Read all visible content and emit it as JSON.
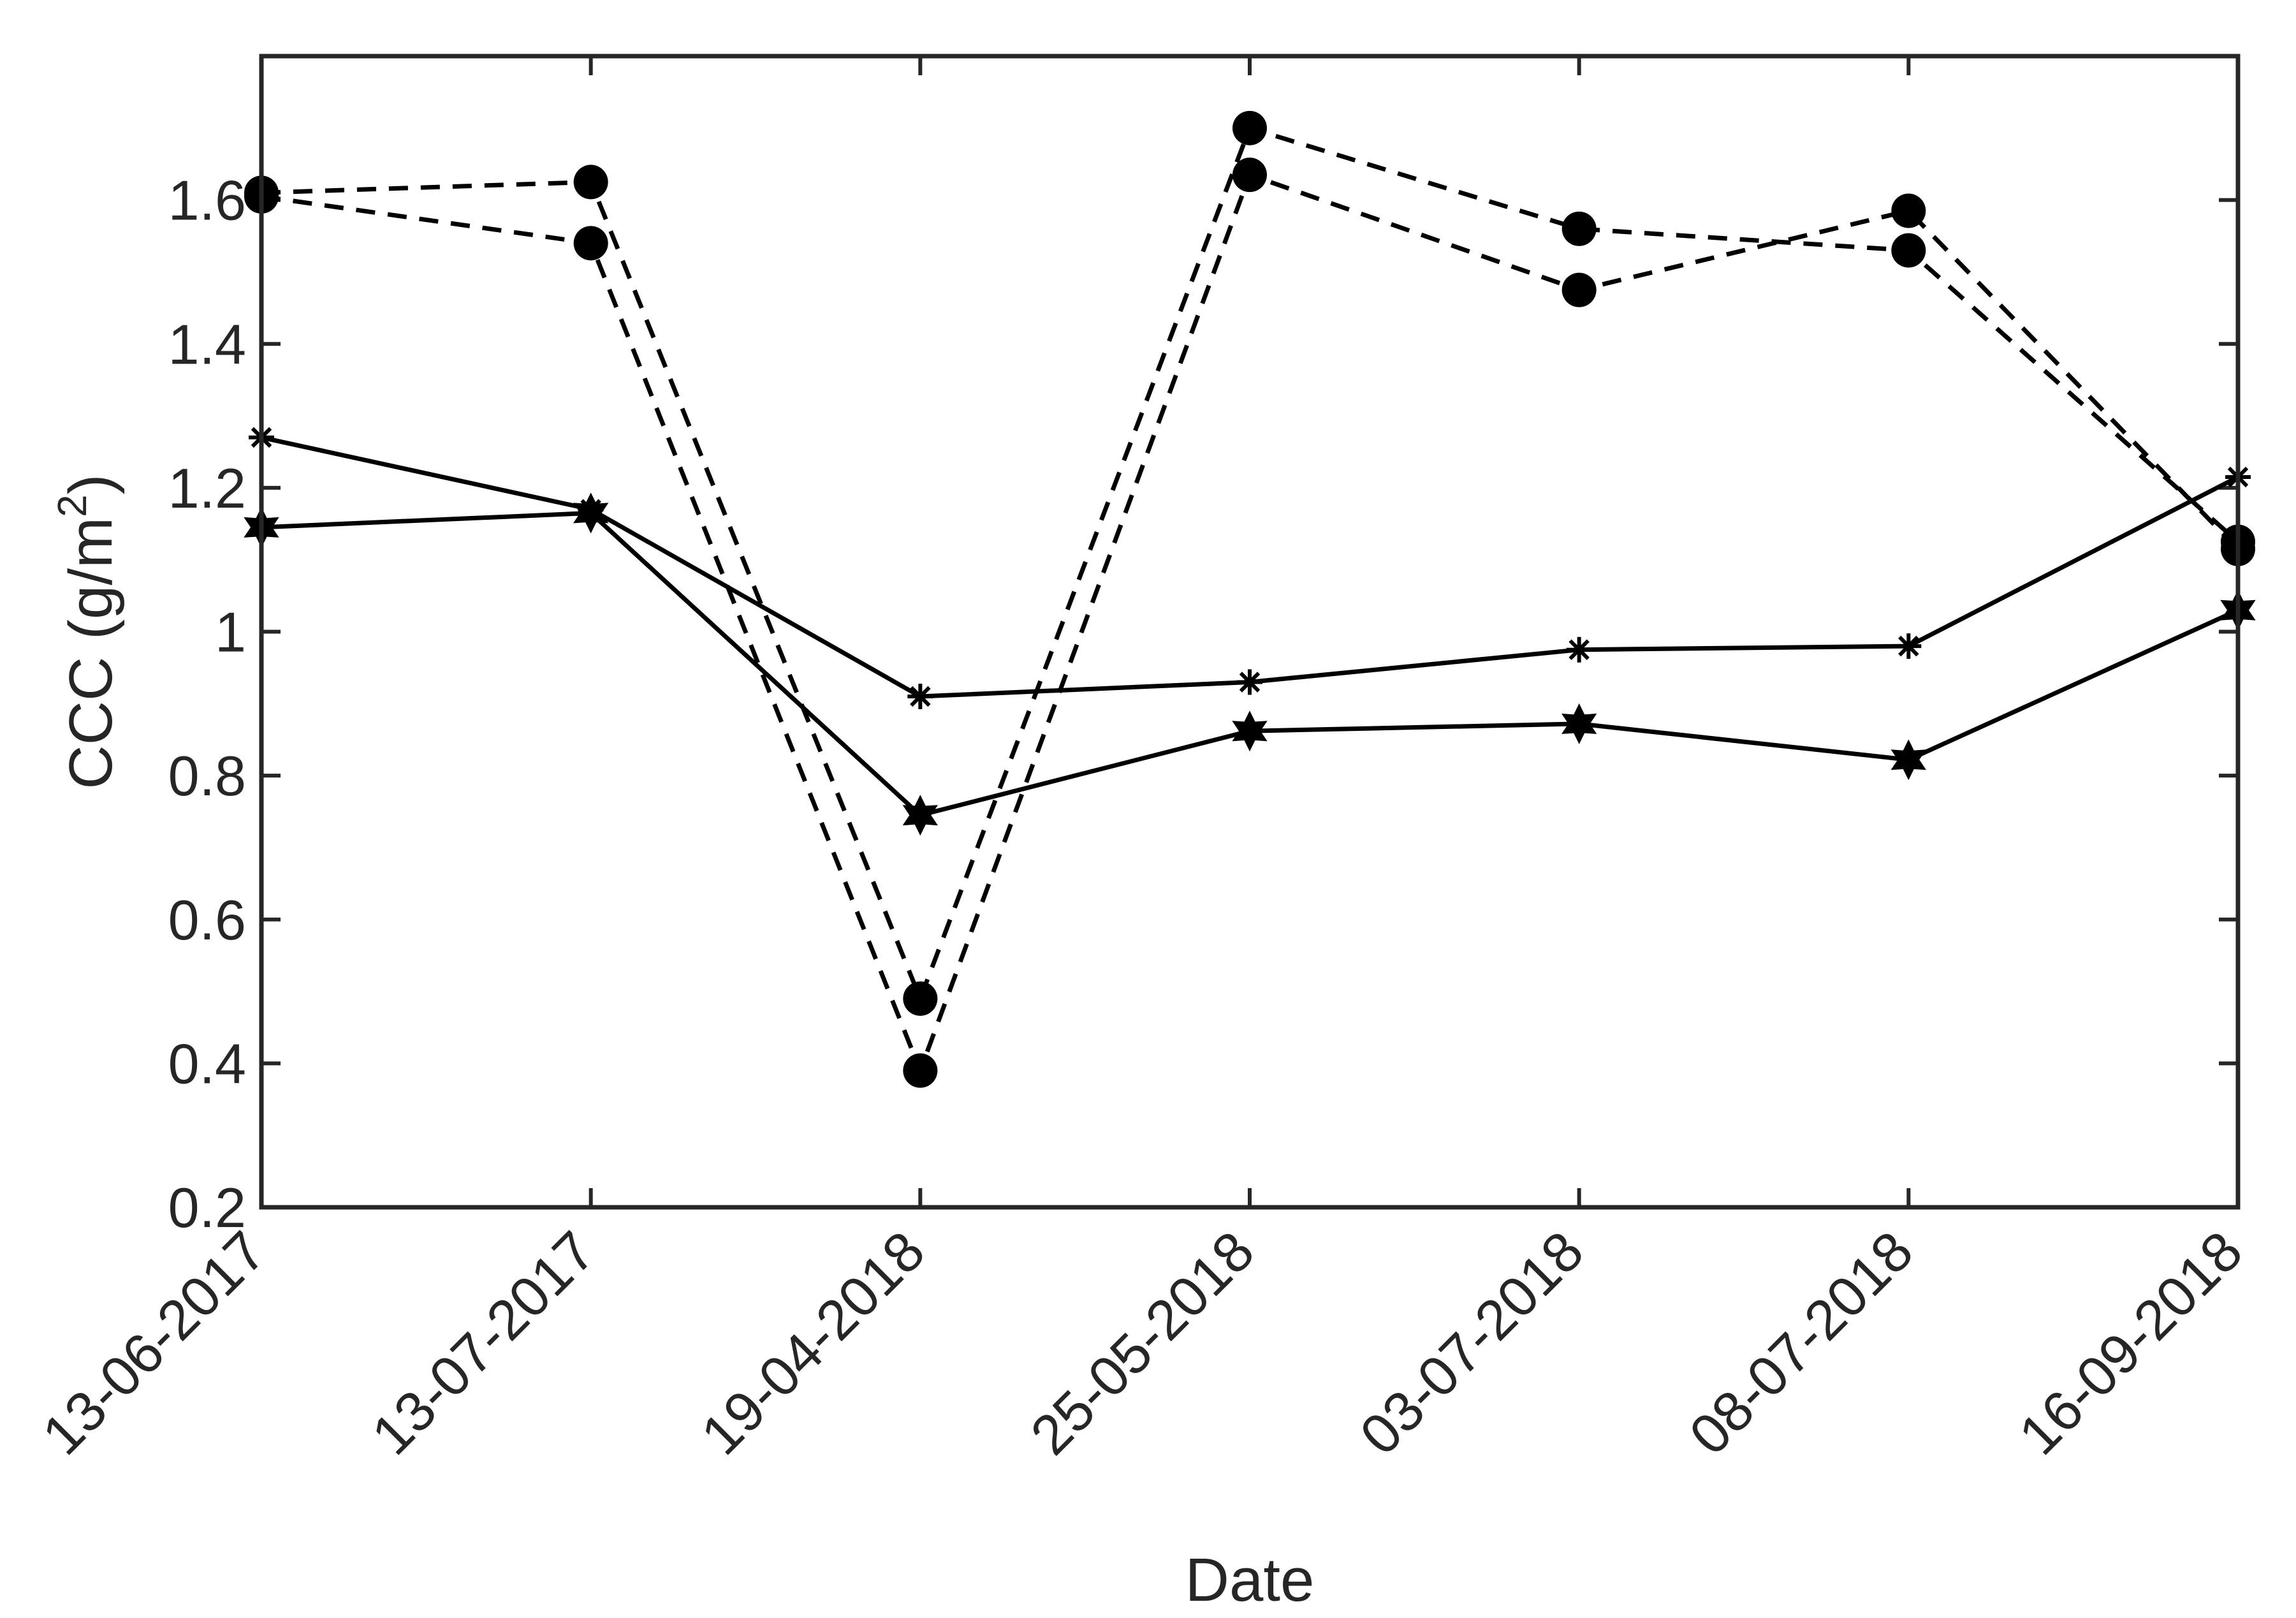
{
  "chart_data": {
    "type": "line",
    "title": "",
    "xlabel": "Date",
    "ylabel": "CCC (g/m",
    "ylabel_superscript": "2",
    "ylabel_suffix": ")",
    "categories": [
      "13-06-2017",
      "13-07-2017",
      "19-04-2018",
      "25-05-2018",
      "03-07-2018",
      "08-07-2018",
      "16-09-2018"
    ],
    "ylim": [
      0.2,
      1.8
    ],
    "yticks": [
      0.2,
      0.4,
      0.6,
      0.8,
      1,
      1.2,
      1.4,
      1.6
    ],
    "ytick_labels": [
      "0.2",
      "0.4",
      "0.6",
      "0.8",
      "1",
      "1.2",
      "1.4",
      "1.6"
    ],
    "grid": false,
    "series": [
      {
        "name": "dashed-circle-a",
        "line_style": "dashed",
        "marker": "circle",
        "values": [
          1.61,
          1.625,
          0.49,
          1.7,
          1.56,
          1.53,
          1.125
        ]
      },
      {
        "name": "dashed-circle-b",
        "line_style": "dashed",
        "marker": "circle",
        "values": [
          1.605,
          1.54,
          0.39,
          1.635,
          1.475,
          1.585,
          1.115
        ]
      },
      {
        "name": "solid-asterisk",
        "line_style": "solid",
        "marker": "asterisk",
        "values": [
          1.27,
          1.17,
          0.91,
          0.93,
          0.975,
          0.98,
          1.215
        ]
      },
      {
        "name": "solid-hexagram",
        "line_style": "solid",
        "marker": "hexagram",
        "values": [
          1.145,
          1.165,
          0.745,
          0.862,
          0.872,
          0.822,
          1.03
        ]
      }
    ]
  }
}
